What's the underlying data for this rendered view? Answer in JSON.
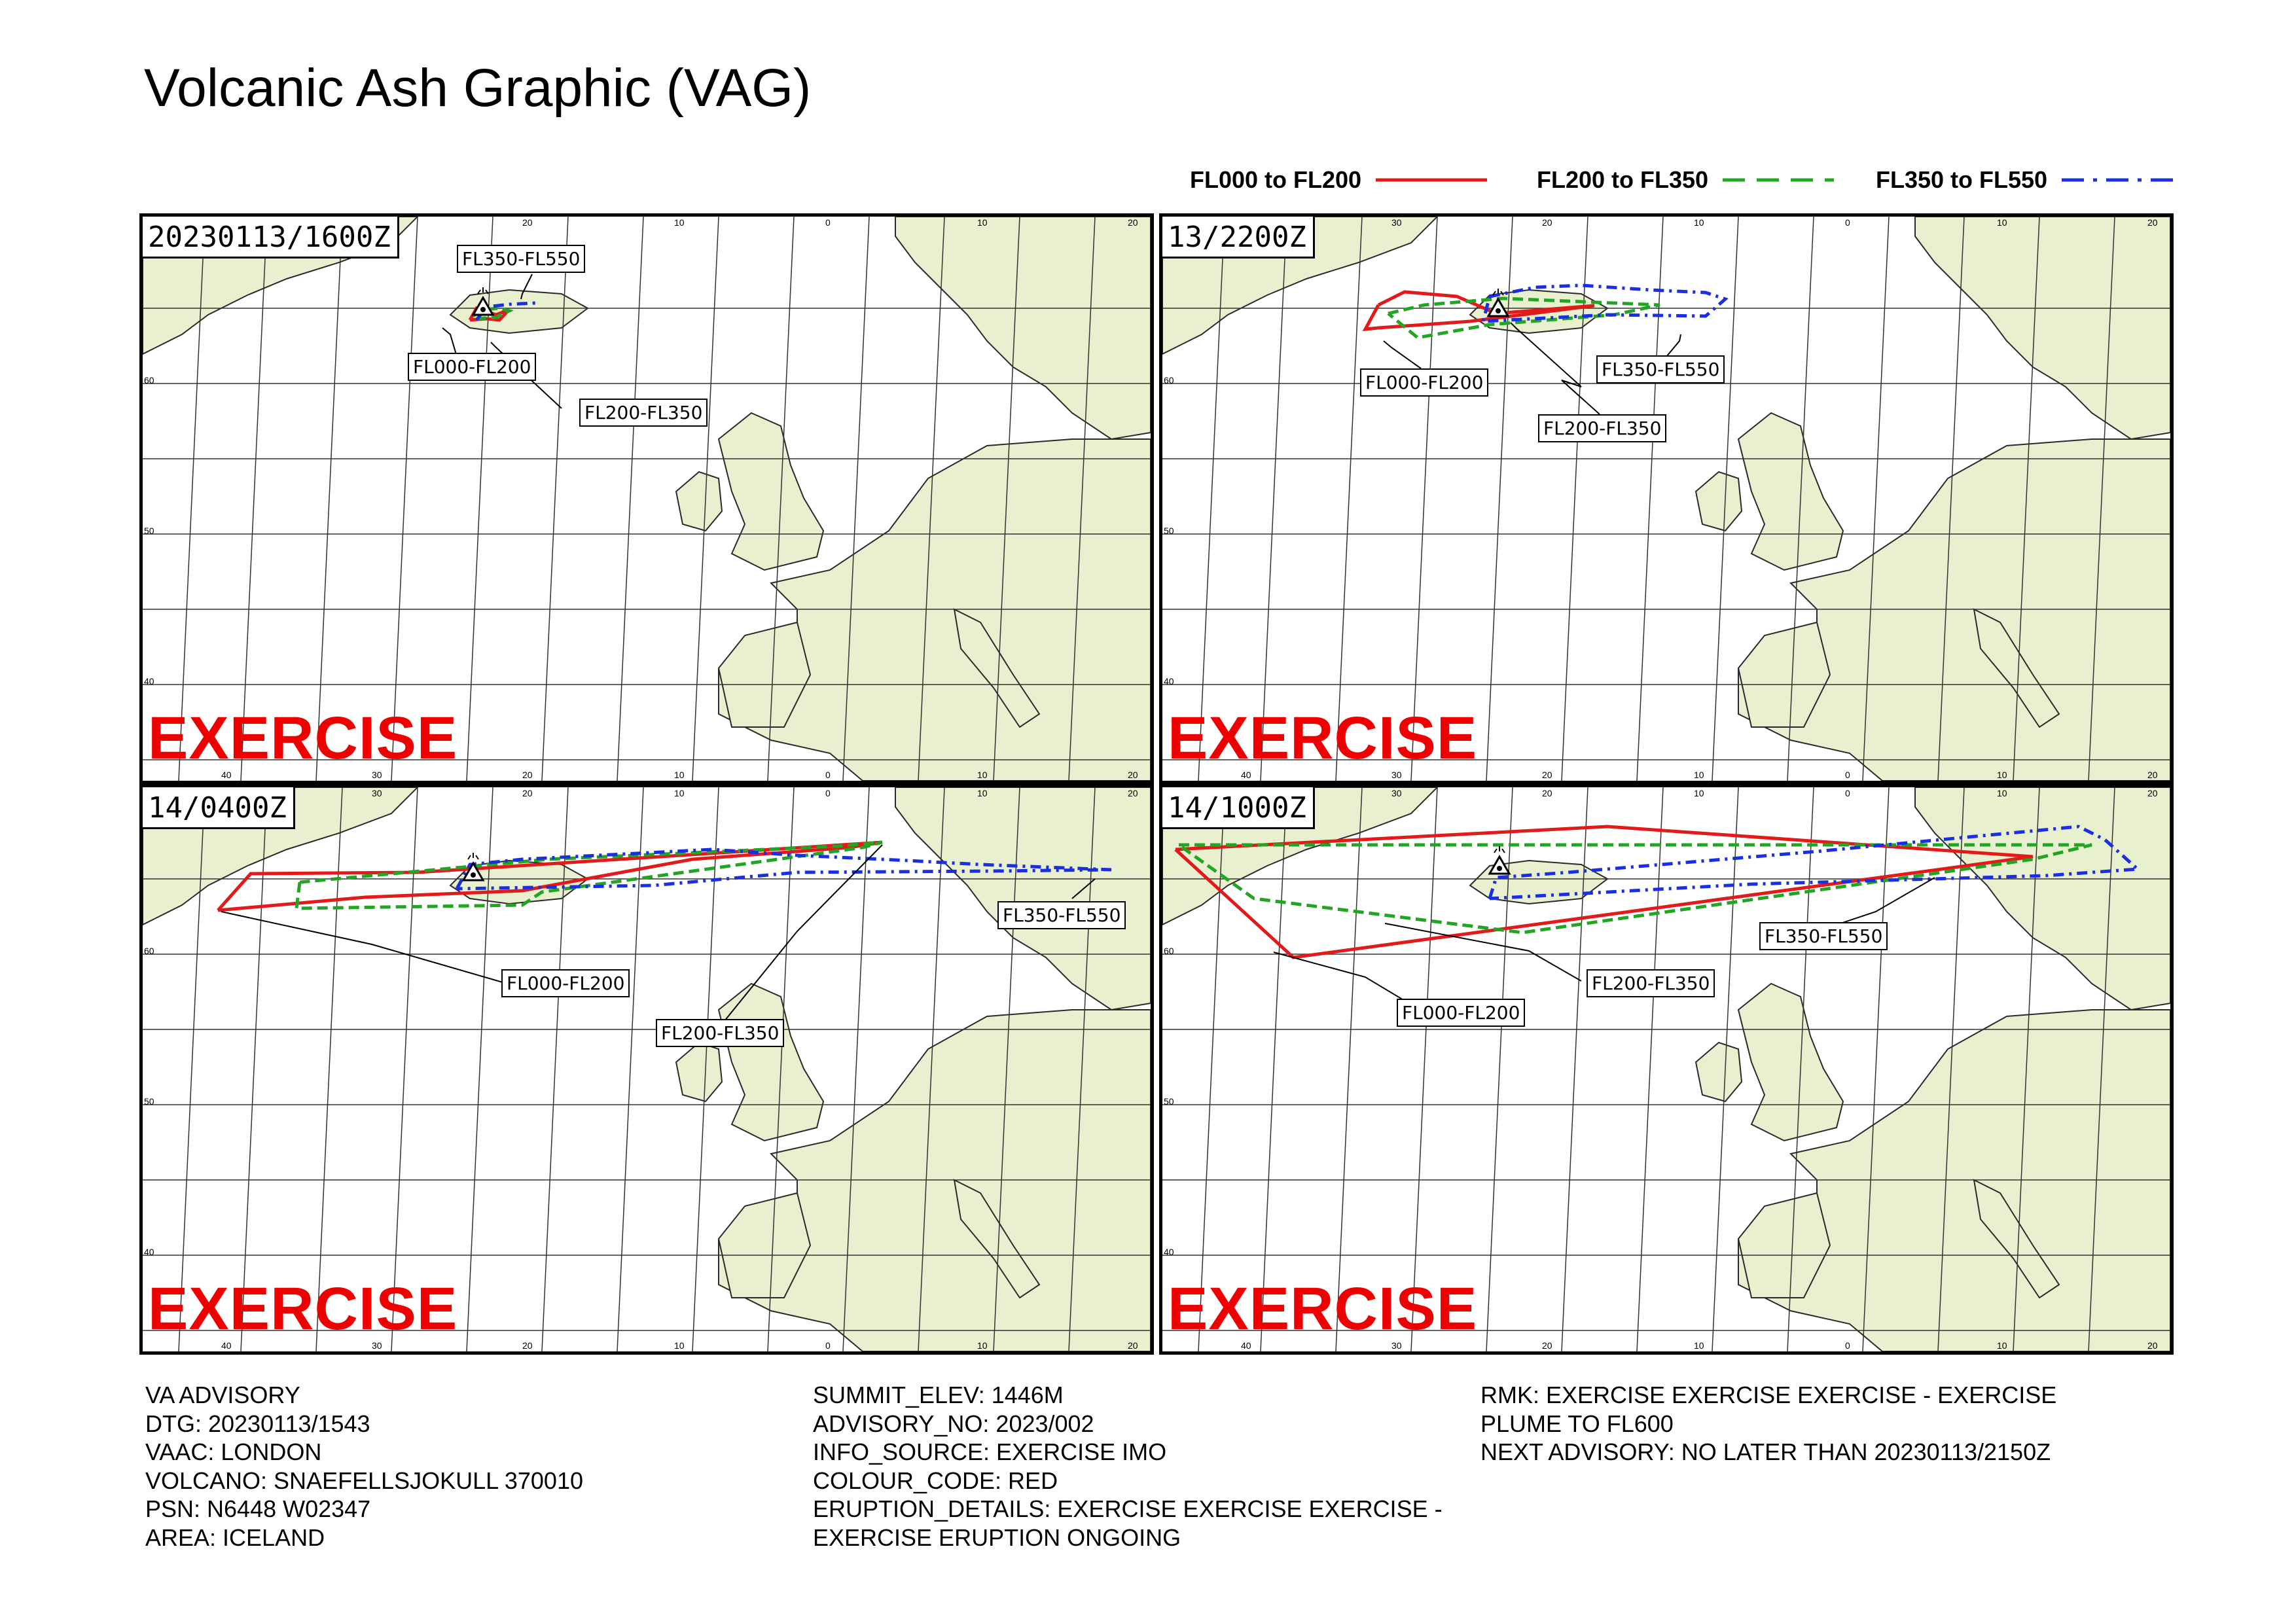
{
  "title": "Volcanic Ash Graphic (VAG)",
  "legend": [
    {
      "label": "FL000 to FL200",
      "color": "#e21a1a",
      "style": "solid"
    },
    {
      "label": "FL200 to FL350",
      "color": "#22a522",
      "style": "dashed"
    },
    {
      "label": "FL350 to FL550",
      "color": "#1a2ee2",
      "style": "dashdot"
    }
  ],
  "exercise_text": "EXERCISE",
  "panels": [
    {
      "time": "20230113/1600Z",
      "labels": {
        "FL000-FL200": "FL000-FL200",
        "FL200-FL350": "FL200-FL350",
        "FL350-FL550": "FL350-FL550"
      }
    },
    {
      "time": "13/2200Z",
      "labels": {
        "FL000-FL200": "FL000-FL200",
        "FL200-FL350": "FL200-FL350",
        "FL350-FL550": "FL350-FL550"
      }
    },
    {
      "time": "14/0400Z",
      "labels": {
        "FL000-FL200": "FL000-FL200",
        "FL200-FL350": "FL200-FL350",
        "FL350-FL550": "FL350-FL550"
      }
    },
    {
      "time": "14/1000Z",
      "labels": {
        "FL000-FL200": "FL000-FL200",
        "FL200-FL350": "FL200-FL350",
        "FL350-FL550": "FL350-FL550"
      }
    }
  ],
  "tick_labels": {
    "top": [
      "30",
      "20",
      "10",
      "0",
      "10",
      "20"
    ],
    "bottom": [
      "40",
      "30",
      "20",
      "10",
      "0",
      "10",
      "20"
    ],
    "left": [
      "60",
      "50",
      "40"
    ]
  },
  "advisory_left": [
    "VA ADVISORY",
    "DTG: 20230113/1543",
    "VAAC: LONDON",
    "VOLCANO: SNAEFELLSJOKULL 370010",
    "PSN: N6448 W02347",
    "AREA: ICELAND"
  ],
  "advisory_middle": [
    "SUMMIT_ELEV: 1446M",
    "ADVISORY_NO: 2023/002",
    "INFO_SOURCE: EXERCISE IMO",
    "COLOUR_CODE: RED",
    "ERUPTION_DETAILS: EXERCISE EXERCISE EXERCISE -",
    "EXERCISE ERUPTION ONGOING"
  ],
  "advisory_right": [
    "RMK: EXERCISE EXERCISE EXERCISE - EXERCISE",
    "PLUME TO FL600",
    "NEXT ADVISORY: NO LATER THAN 20230113/2150Z"
  ]
}
